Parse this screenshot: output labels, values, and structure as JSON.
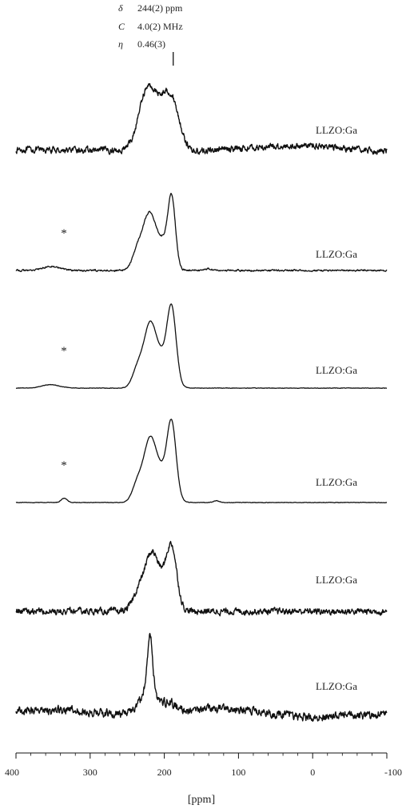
{
  "chart_data": {
    "type": "line",
    "title": "",
    "xlabel": "[ppm]",
    "ylabel": "",
    "xlim": [
      400,
      -100
    ],
    "x_reversed": true,
    "xticks": [
      400,
      300,
      200,
      100,
      0,
      -100
    ],
    "xtick_labels": [
      "400",
      "300",
      "200",
      "100",
      "0",
      "-100"
    ],
    "grid": false,
    "annotation": {
      "lines": [
        {
          "symbol": "δ",
          "value": "244(2) ppm"
        },
        {
          "symbol": "C",
          "value": "4.0(2) MHz"
        },
        {
          "symbol": "η",
          "value": "0.46(3)"
        }
      ],
      "x": 188
    },
    "series": [
      {
        "name": "LLZO:Ga",
        "asterisk": false,
        "noise": 0.07,
        "baseline": [
          [
            400,
            0
          ],
          [
            330,
            -0.01
          ],
          [
            260,
            -0.01
          ],
          [
            245,
            0.05
          ],
          [
            180,
            -0.05
          ],
          [
            150,
            -0.02
          ],
          [
            100,
            0.02
          ],
          [
            0,
            0.06
          ],
          [
            -60,
            0
          ],
          [
            -100,
            -0.02
          ]
        ],
        "peaks": [
          [
            222,
            0.68,
            10
          ],
          [
            190,
            0.68,
            11
          ],
          [
            206,
            0.35,
            10
          ],
          [
            232,
            0.15,
            7
          ]
        ]
      },
      {
        "name": "LLZO:Ga",
        "asterisk": true,
        "noise": 0.018,
        "baseline": [
          [
            400,
            0
          ],
          [
            -100,
            0
          ]
        ],
        "peaks": [
          [
            221,
            0.62,
            8
          ],
          [
            190,
            0.78,
            5
          ],
          [
            203,
            0.35,
            10
          ],
          [
            236,
            0.24,
            7
          ],
          [
            352,
            0.05,
            12
          ],
          [
            140,
            0.025,
            4
          ]
        ]
      },
      {
        "name": "LLZO:Ga",
        "asterisk": true,
        "noise": 0.005,
        "baseline": [
          [
            400,
            0
          ],
          [
            -100,
            0
          ]
        ],
        "peaks": [
          [
            220,
            0.6,
            8
          ],
          [
            190,
            0.78,
            6
          ],
          [
            204,
            0.35,
            12
          ],
          [
            236,
            0.22,
            7
          ],
          [
            353,
            0.04,
            12
          ]
        ]
      },
      {
        "name": "LLZO:Ga",
        "asterisk": true,
        "noise": 0.005,
        "baseline": [
          [
            400,
            0
          ],
          [
            -100,
            0
          ]
        ],
        "peaks": [
          [
            220,
            0.6,
            8
          ],
          [
            190,
            0.78,
            6
          ],
          [
            204,
            0.35,
            12
          ],
          [
            236,
            0.22,
            7
          ],
          [
            335,
            0.05,
            4
          ],
          [
            130,
            0.02,
            4
          ]
        ]
      },
      {
        "name": "LLZO:Ga",
        "asterisk": false,
        "noise": 0.07,
        "baseline": [
          [
            400,
            0
          ],
          [
            -100,
            0
          ]
        ],
        "peaks": [
          [
            218,
            0.58,
            9
          ],
          [
            190,
            0.7,
            7
          ],
          [
            204,
            0.3,
            12
          ],
          [
            235,
            0.22,
            8
          ]
        ]
      },
      {
        "name": "LLZO:Ga",
        "asterisk": false,
        "noise": 0.1,
        "baseline": [
          [
            400,
            0.05
          ],
          [
            330,
            0.05
          ],
          [
            270,
            0
          ],
          [
            160,
            0.05
          ],
          [
            120,
            0.08
          ],
          [
            50,
            0
          ],
          [
            0,
            -0.05
          ],
          [
            -100,
            0
          ]
        ],
        "peaks": [
          [
            219,
            0.82,
            3.5
          ],
          [
            223,
            0.3,
            10
          ],
          [
            195,
            0.12,
            12
          ]
        ]
      }
    ]
  }
}
